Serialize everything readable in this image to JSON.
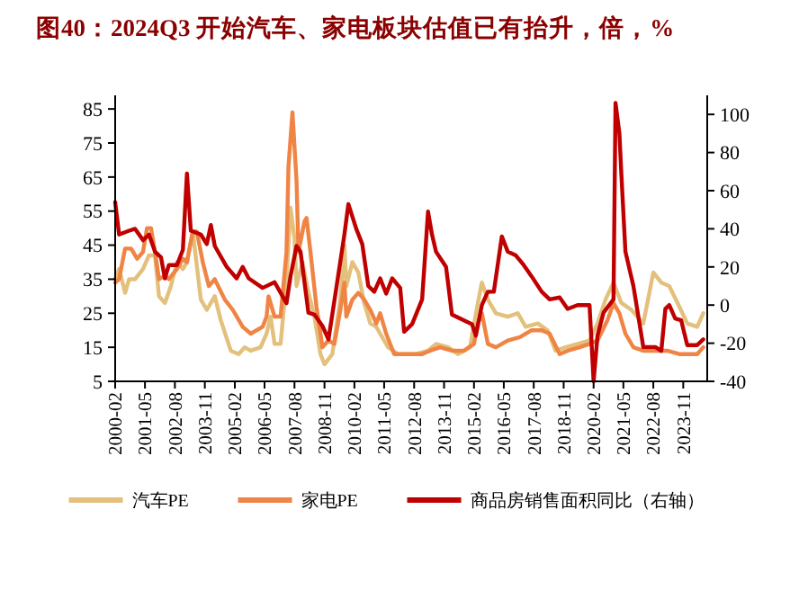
{
  "chart_data": {
    "type": "line",
    "title": "图40：2024Q3 开始汽车、家电板块估值已有抬升，倍，%",
    "xlim": [
      "2000-02",
      "2024-11"
    ],
    "xticks": [
      "2000-02",
      "2001-05",
      "2002-08",
      "2003-11",
      "2005-02",
      "2006-05",
      "2007-08",
      "2008-11",
      "2010-02",
      "2011-05",
      "2012-08",
      "2013-11",
      "2015-02",
      "2016-05",
      "2017-08",
      "2018-11",
      "2020-02",
      "2021-05",
      "2022-08",
      "2023-11"
    ],
    "ylim": [
      5,
      89
    ],
    "yticks": [
      5,
      15,
      25,
      35,
      45,
      55,
      65,
      75,
      85
    ],
    "y2lim": [
      -40,
      110
    ],
    "y2ticks": [
      -40,
      -20,
      0,
      20,
      40,
      60,
      80,
      100
    ],
    "legend": "bottom",
    "grid": false,
    "series": [
      {
        "name": "汽车PE",
        "color": "#e3c07c",
        "x": [
          "2000-02",
          "2000-04",
          "2000-07",
          "2000-09",
          "2000-12",
          "2001-04",
          "2001-07",
          "2001-10",
          "2001-12",
          "2002-03",
          "2002-06",
          "2002-09",
          "2002-12",
          "2003-02",
          "2003-05",
          "2003-09",
          "2003-12",
          "2004-04",
          "2004-07",
          "2004-12",
          "2005-04",
          "2005-07",
          "2005-10",
          "2006-03",
          "2006-06",
          "2006-08",
          "2006-10",
          "2007-01",
          "2007-04",
          "2007-06",
          "2007-08",
          "2007-09",
          "2007-12",
          "2008-03",
          "2008-06",
          "2008-09",
          "2008-11",
          "2009-03",
          "2009-07",
          "2009-09",
          "2009-10",
          "2010-01",
          "2010-04",
          "2010-07",
          "2010-10",
          "2011-01",
          "2011-03",
          "2011-07",
          "2011-12",
          "2012-04",
          "2012-09",
          "2013-03",
          "2013-07",
          "2014-01",
          "2014-06",
          "2014-12",
          "2015-04",
          "2015-06",
          "2015-09",
          "2016-01",
          "2016-07",
          "2016-12",
          "2017-04",
          "2017-10",
          "2018-03",
          "2018-07",
          "2018-12",
          "2019-06",
          "2019-12",
          "2020-04",
          "2020-08",
          "2020-12",
          "2021-04",
          "2021-09",
          "2022-03",
          "2022-06",
          "2022-08",
          "2022-12",
          "2023-04",
          "2023-09",
          "2024-01",
          "2024-06",
          "2024-09"
        ],
        "values": [
          35,
          38,
          31,
          35,
          35,
          38,
          42,
          42,
          30,
          28,
          33,
          40,
          38,
          40,
          49,
          29,
          26,
          30,
          23,
          14,
          13,
          15,
          14,
          15,
          19,
          24,
          16,
          16,
          35,
          56,
          47,
          33,
          40,
          31,
          24,
          13,
          10,
          13,
          29,
          45,
          33,
          40,
          37,
          28,
          22,
          21,
          19,
          15,
          13,
          13,
          13,
          14,
          16,
          15,
          13,
          15,
          28,
          34,
          29,
          25,
          24,
          25,
          21,
          22,
          20,
          14,
          15,
          16,
          17,
          22,
          29,
          34,
          28,
          26,
          22,
          31,
          37,
          34,
          33,
          27,
          22,
          21,
          25
        ]
      },
      {
        "name": "家电PE",
        "color": "#ef8444",
        "x": [
          "2000-02",
          "2000-04",
          "2000-07",
          "2000-10",
          "2001-01",
          "2001-04",
          "2001-06",
          "2001-08",
          "2001-10",
          "2001-12",
          "2002-03",
          "2002-05",
          "2002-09",
          "2002-12",
          "2003-02",
          "2003-05",
          "2003-07",
          "2003-10",
          "2004-01",
          "2004-04",
          "2004-09",
          "2005-01",
          "2005-06",
          "2005-10",
          "2006-04",
          "2006-06",
          "2006-07",
          "2006-10",
          "2007-01",
          "2007-04",
          "2007-05",
          "2007-07",
          "2007-09",
          "2007-10",
          "2008-01",
          "2008-02",
          "2008-04",
          "2008-07",
          "2008-10",
          "2009-01",
          "2009-04",
          "2009-07",
          "2009-09",
          "2009-10",
          "2010-01",
          "2010-04",
          "2010-07",
          "2010-10",
          "2011-01",
          "2011-03",
          "2011-06",
          "2011-10",
          "2012-03",
          "2012-07",
          "2012-12",
          "2013-04",
          "2013-09",
          "2014-03",
          "2014-09",
          "2015-02",
          "2015-04",
          "2015-06",
          "2015-09",
          "2016-01",
          "2016-07",
          "2017-01",
          "2017-07",
          "2017-12",
          "2018-04",
          "2018-09",
          "2019-01",
          "2019-07",
          "2019-12",
          "2020-04",
          "2020-09",
          "2020-12",
          "2021-03",
          "2021-06",
          "2021-10",
          "2022-03",
          "2022-09",
          "2023-03",
          "2023-09",
          "2024-01",
          "2024-06",
          "2024-09"
        ],
        "values": [
          34,
          35,
          44,
          44,
          41,
          43,
          50,
          50,
          43,
          35,
          36,
          35,
          38,
          41,
          40,
          49,
          49,
          40,
          33,
          35,
          29,
          26,
          21,
          19,
          21,
          24,
          30,
          24,
          24,
          43,
          68,
          84,
          64,
          43,
          52,
          53,
          43,
          27,
          15,
          17,
          16,
          26,
          34,
          24,
          29,
          31,
          29,
          26,
          22,
          25,
          19,
          13,
          13,
          13,
          13,
          14,
          15,
          14,
          14,
          16,
          22,
          25,
          16,
          15,
          17,
          18,
          20,
          20,
          19,
          13,
          14,
          15,
          16,
          17,
          23,
          28,
          25,
          19,
          15,
          14,
          14,
          14,
          13,
          13,
          13,
          15
        ]
      },
      {
        "name": "商品房销售面积同比（右轴）",
        "color": "#c00000",
        "axis": "y2",
        "x": [
          "2000-02",
          "2000-04",
          "2000-09",
          "2000-12",
          "2001-04",
          "2001-07",
          "2001-10",
          "2002-01",
          "2002-03",
          "2002-05",
          "2002-09",
          "2002-12",
          "2003-02",
          "2003-04",
          "2003-09",
          "2003-12",
          "2004-02",
          "2004-04",
          "2004-10",
          "2005-03",
          "2005-06",
          "2005-09",
          "2006-04",
          "2006-10",
          "2007-04",
          "2007-06",
          "2007-09",
          "2007-11",
          "2008-03",
          "2008-06",
          "2008-10",
          "2009-01",
          "2009-05",
          "2009-09",
          "2009-11",
          "2010-03",
          "2010-06",
          "2010-09",
          "2010-12",
          "2011-03",
          "2011-06",
          "2011-09",
          "2012-01",
          "2012-03",
          "2012-07",
          "2012-12",
          "2013-03",
          "2013-05",
          "2013-07",
          "2013-12",
          "2014-03",
          "2014-09",
          "2015-01",
          "2015-03",
          "2015-06",
          "2015-09",
          "2015-12",
          "2016-04",
          "2016-07",
          "2016-11",
          "2017-03",
          "2017-07",
          "2017-12",
          "2018-04",
          "2018-09",
          "2019-01",
          "2019-06",
          "2019-12",
          "2020-02",
          "2020-04",
          "2020-07",
          "2020-12",
          "2021-01",
          "2021-03",
          "2021-04",
          "2021-06",
          "2021-10",
          "2022-03",
          "2022-09",
          "2022-12",
          "2023-02",
          "2023-04",
          "2023-07",
          "2023-10",
          "2024-01",
          "2024-06",
          "2024-09"
        ],
        "values": [
          54,
          37,
          39,
          40,
          34,
          37,
          28,
          25,
          14,
          21,
          21,
          29,
          69,
          39,
          37,
          32,
          42,
          31,
          20,
          14,
          20,
          14,
          9,
          12,
          1,
          15,
          31,
          28,
          -4,
          -5,
          -11,
          -18,
          9,
          37,
          53,
          40,
          32,
          10,
          7,
          14,
          6,
          14,
          9,
          -14,
          -10,
          3,
          49,
          37,
          28,
          20,
          -5,
          -8,
          -10,
          -16,
          0,
          7,
          7,
          36,
          28,
          26,
          21,
          15,
          7,
          3,
          4,
          -2,
          0,
          0,
          -40,
          -16,
          -4,
          3,
          106,
          90,
          68,
          28,
          10,
          -22,
          -22,
          -24,
          -2,
          0,
          -7,
          -8,
          -21,
          -21,
          -18
        ]
      }
    ]
  }
}
